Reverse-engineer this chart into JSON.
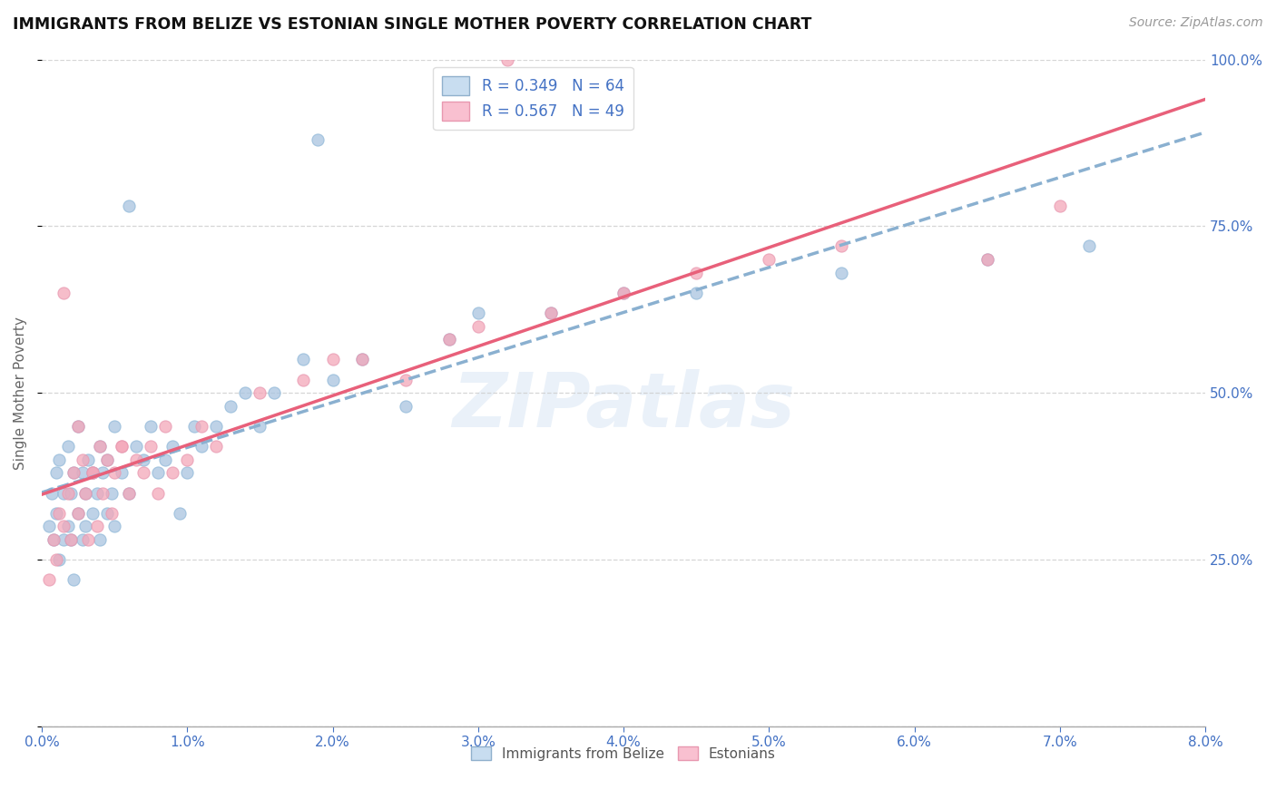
{
  "title": "IMMIGRANTS FROM BELIZE VS ESTONIAN SINGLE MOTHER POVERTY CORRELATION CHART",
  "source": "Source: ZipAtlas.com",
  "ylabel": "Single Mother Poverty",
  "legend_label1": "Immigrants from Belize",
  "legend_label2": "Estonians",
  "r1": 0.349,
  "n1": 64,
  "r2": 0.567,
  "n2": 49,
  "color1": "#a8c4e0",
  "color2": "#f4a7b9",
  "line_color1": "#8ab0d0",
  "line_color2": "#e8607a",
  "xlim": [
    0.0,
    8.0
  ],
  "ylim": [
    0.0,
    100.0
  ],
  "watermark_text": "ZIPatlas",
  "belize_x": [
    0.05,
    0.07,
    0.08,
    0.1,
    0.1,
    0.12,
    0.12,
    0.15,
    0.15,
    0.18,
    0.18,
    0.2,
    0.2,
    0.22,
    0.22,
    0.25,
    0.25,
    0.28,
    0.28,
    0.3,
    0.3,
    0.32,
    0.35,
    0.35,
    0.38,
    0.4,
    0.4,
    0.42,
    0.45,
    0.45,
    0.48,
    0.5,
    0.5,
    0.55,
    0.6,
    0.65,
    0.7,
    0.75,
    0.8,
    0.85,
    0.9,
    0.95,
    1.0,
    1.05,
    1.1,
    1.2,
    1.3,
    1.4,
    1.5,
    1.6,
    1.8,
    2.0,
    2.2,
    2.5,
    2.8,
    3.0,
    3.5,
    4.0,
    4.5,
    5.5,
    6.5,
    7.2,
    0.6,
    1.9
  ],
  "belize_y": [
    30,
    35,
    28,
    32,
    38,
    25,
    40,
    28,
    35,
    30,
    42,
    35,
    28,
    38,
    22,
    32,
    45,
    28,
    38,
    35,
    30,
    40,
    32,
    38,
    35,
    42,
    28,
    38,
    40,
    32,
    35,
    30,
    45,
    38,
    35,
    42,
    40,
    45,
    38,
    40,
    42,
    32,
    38,
    45,
    42,
    45,
    48,
    50,
    45,
    50,
    55,
    52,
    55,
    48,
    58,
    62,
    62,
    65,
    65,
    68,
    70,
    72,
    78,
    88
  ],
  "estonian_x": [
    0.05,
    0.08,
    0.1,
    0.12,
    0.15,
    0.18,
    0.2,
    0.22,
    0.25,
    0.28,
    0.3,
    0.32,
    0.35,
    0.38,
    0.4,
    0.42,
    0.45,
    0.48,
    0.5,
    0.55,
    0.6,
    0.65,
    0.7,
    0.75,
    0.8,
    0.85,
    0.9,
    1.0,
    1.1,
    1.2,
    1.5,
    1.8,
    2.0,
    2.2,
    2.5,
    2.8,
    3.0,
    3.5,
    4.0,
    4.5,
    5.0,
    5.5,
    6.5,
    7.0,
    0.15,
    0.25,
    0.35,
    0.55,
    3.2
  ],
  "estonian_y": [
    22,
    28,
    25,
    32,
    30,
    35,
    28,
    38,
    32,
    40,
    35,
    28,
    38,
    30,
    42,
    35,
    40,
    32,
    38,
    42,
    35,
    40,
    38,
    42,
    35,
    45,
    38,
    40,
    45,
    42,
    50,
    52,
    55,
    55,
    52,
    58,
    60,
    62,
    65,
    68,
    70,
    72,
    70,
    78,
    65,
    45,
    38,
    42,
    100
  ]
}
